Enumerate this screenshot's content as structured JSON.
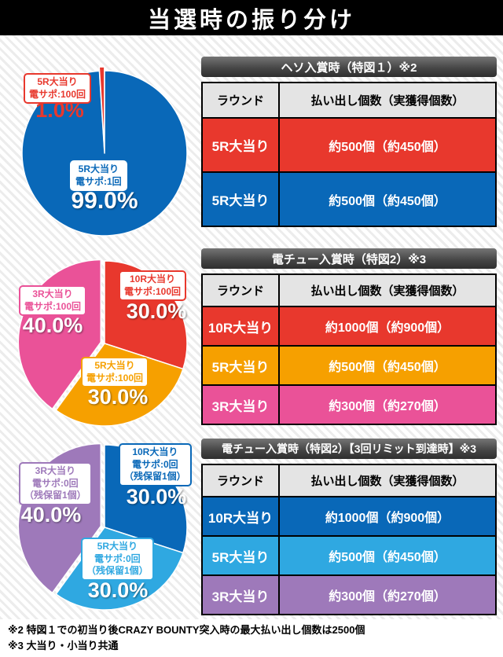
{
  "title": "当選時の振り分け",
  "footnotes": [
    "※2 特図１での初当り後CRAZY BOUNTY突入時の最大払い出し個数は2500個",
    "※3 大当り・小当り共通"
  ],
  "columns": {
    "round": "ラウンド",
    "payout": "払い出し個数（実獲得個数）"
  },
  "sections": [
    {
      "table_title": "ヘソ入賞時（特図１）※2",
      "rows": [
        {
          "round": "5R大当り",
          "payout": "約500個（約450個）",
          "color": "#e8382d"
        },
        {
          "round": "5R大当り",
          "payout": "約500個（約450個）",
          "color": "#0968b8"
        }
      ],
      "labels": [
        {
          "lines": [
            "5R大当り",
            "電サポ:100回"
          ],
          "pct": "1.0%",
          "color": "#e8382d",
          "border": "#e8382d",
          "pct_color": "#e8382d"
        },
        {
          "lines": [
            "5R大当り",
            "電サポ:1回"
          ],
          "pct": "99.0%",
          "color": "#0968b8",
          "border": "#ffffff",
          "pct_color": "#ffffff"
        }
      ]
    },
    {
      "table_title": "電チュー入賞時（特図2）※3",
      "rows": [
        {
          "round": "10R大当り",
          "payout": "約1000個（約900個）",
          "color": "#e8382d"
        },
        {
          "round": "5R大当り",
          "payout": "約500個（約450個）",
          "color": "#f6a000"
        },
        {
          "round": "3R大当り",
          "payout": "約300個（約270個）",
          "color": "#ea5298"
        }
      ],
      "labels": [
        {
          "lines": [
            "10R大当り",
            "電サポ:100回"
          ],
          "pct": "30.0%",
          "color": "#e8382d",
          "border": "#e8382d",
          "pct_color": "#ffffff"
        },
        {
          "lines": [
            "3R大当り",
            "電サポ:100回"
          ],
          "pct": "40.0%",
          "color": "#ea5298",
          "border": "#ea5298",
          "pct_color": "#ffffff"
        },
        {
          "lines": [
            "5R大当り",
            "電サポ:100回"
          ],
          "pct": "30.0%",
          "color": "#f6a000",
          "border": "#f6a000",
          "pct_color": "#ffffff"
        }
      ]
    },
    {
      "table_title": "電チュー入賞時（特図2）【3回リミット到達時】※3",
      "rows": [
        {
          "round": "10R大当り",
          "payout": "約1000個（約900個）",
          "color": "#0968b8"
        },
        {
          "round": "5R大当り",
          "payout": "約500個（約450個）",
          "color": "#2fa8e1"
        },
        {
          "round": "3R大当り",
          "payout": "約300個（約270個）",
          "color": "#9e79ba"
        }
      ],
      "labels": [
        {
          "lines": [
            "10R大当り",
            "電サポ:0回",
            "（残保留1個）"
          ],
          "pct": "30.0%",
          "color": "#0968b8",
          "border": "#0968b8",
          "pct_color": "#ffffff"
        },
        {
          "lines": [
            "3R大当り",
            "電サポ:0回",
            "（残保留1個）"
          ],
          "pct": "40.0%",
          "color": "#9e79ba",
          "border": "#9e79ba",
          "pct_color": "#ffffff"
        },
        {
          "lines": [
            "5R大当り",
            "電サポ:0回",
            "（残保留1個）"
          ],
          "pct": "30.0%",
          "color": "#2fa8e1",
          "border": "#2fa8e1",
          "pct_color": "#ffffff"
        }
      ]
    }
  ],
  "chart_data": [
    {
      "type": "pie",
      "title": "ヘソ入賞時（特図１）",
      "unit": "%",
      "slices": [
        {
          "label": "5R大当り 電サポ:1回",
          "value": 99.0,
          "color": "#0968b8"
        },
        {
          "label": "5R大当り 電サポ:100回",
          "value": 1.0,
          "color": "#e8382d",
          "explode": 5
        }
      ]
    },
    {
      "type": "pie",
      "title": "電チュー入賞時（特図2）",
      "unit": "%",
      "slices": [
        {
          "label": "10R大当り 電サポ:100回",
          "value": 30.0,
          "color": "#e8382d"
        },
        {
          "label": "5R大当り 電サポ:100回",
          "value": 30.0,
          "color": "#f6a000"
        },
        {
          "label": "3R大当り 電サポ:100回",
          "value": 40.0,
          "color": "#ea5298",
          "explode": 5
        }
      ]
    },
    {
      "type": "pie",
      "title": "電チュー入賞時（特図2）【3回リミット到達時】",
      "unit": "%",
      "slices": [
        {
          "label": "10R大当り 電サポ:0回（残保留1個）",
          "value": 30.0,
          "color": "#0968b8"
        },
        {
          "label": "5R大当り 電サポ:0回（残保留1個）",
          "value": 30.0,
          "color": "#2fa8e1"
        },
        {
          "label": "3R大当り 電サポ:0回（残保留1個）",
          "value": 40.0,
          "color": "#9e79ba",
          "explode": 5
        }
      ]
    }
  ]
}
